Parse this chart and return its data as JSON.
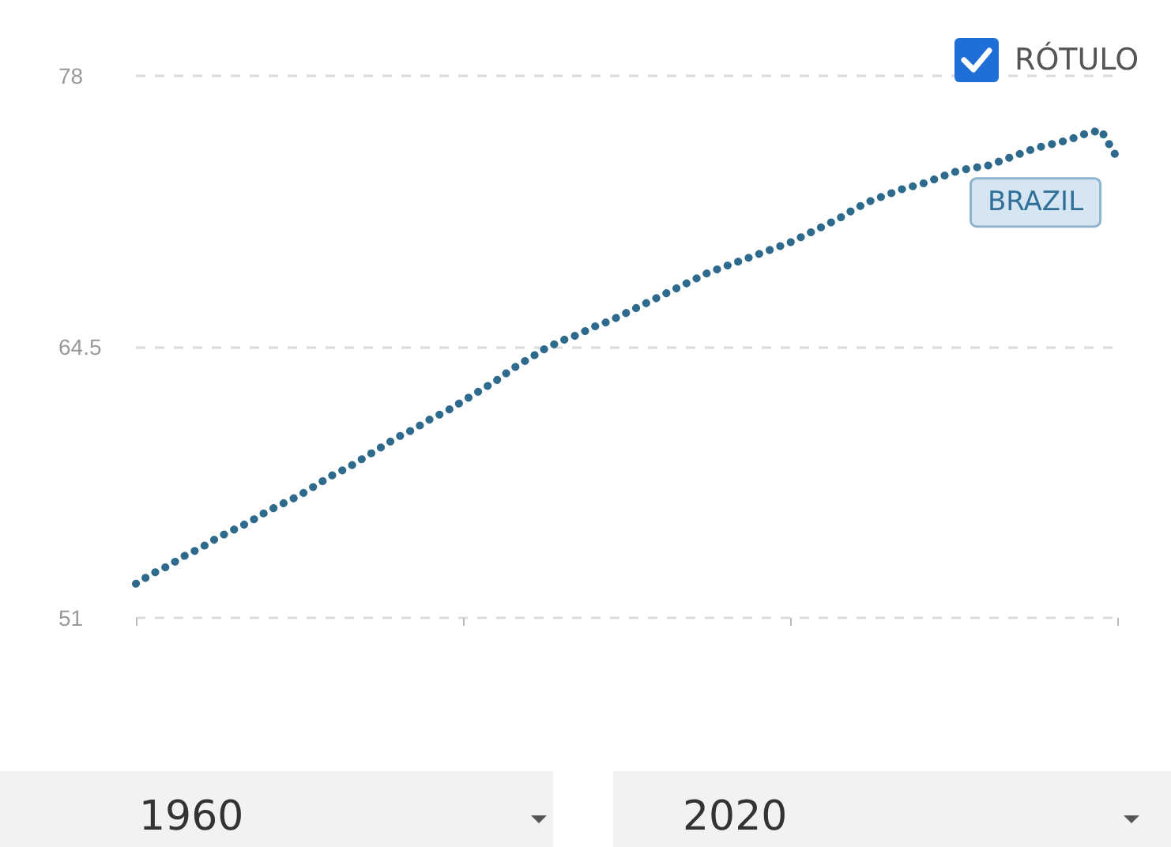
{
  "chart_data": {
    "type": "line",
    "categories": [
      null,
      null,
      null,
      null,
      null,
      null,
      null,
      null,
      null,
      null,
      null,
      null,
      null,
      null,
      null,
      null,
      null,
      null,
      null,
      null,
      null,
      null,
      null,
      null,
      null,
      null,
      null,
      null,
      null,
      null,
      null,
      null,
      null,
      null,
      null,
      null,
      null,
      null,
      null,
      null,
      null,
      null,
      null,
      null,
      null,
      null,
      null,
      null,
      null,
      null,
      null,
      null,
      null,
      null,
      null,
      null,
      null,
      null,
      null,
      null,
      null
    ],
    "series": [
      {
        "name": "BRAZIL",
        "color": "#2d6a8c",
        "values": [
          52.7,
          53.2,
          53.6,
          54.1,
          54.5,
          55.0,
          55.4,
          55.8,
          56.3,
          56.7,
          57.1,
          57.6,
          58.1,
          58.5,
          59.0,
          59.5,
          60.0,
          60.4,
          60.9,
          61.3,
          61.8,
          62.3,
          62.8,
          63.4,
          63.9,
          64.4,
          64.8,
          65.1,
          65.5,
          65.8,
          66.2,
          66.6,
          67.0,
          67.4,
          67.8,
          68.2,
          68.5,
          68.8,
          69.1,
          69.4,
          69.7,
          70.1,
          70.5,
          70.9,
          71.4,
          71.8,
          72.1,
          72.4,
          72.6,
          72.9,
          73.2,
          73.4,
          73.5,
          73.8,
          74.1,
          74.4,
          74.6,
          74.8,
          75.1,
          75.3,
          73.9
        ]
      }
    ],
    "ylim": [
      51,
      78
    ],
    "yticks": [
      51,
      64.5,
      78
    ],
    "tick_labels": "y",
    "grid": "y",
    "marker": "none",
    "line_style": "dotted",
    "annotations": [
      "RÓTULO",
      "1960",
      "2020"
    ]
  }
}
